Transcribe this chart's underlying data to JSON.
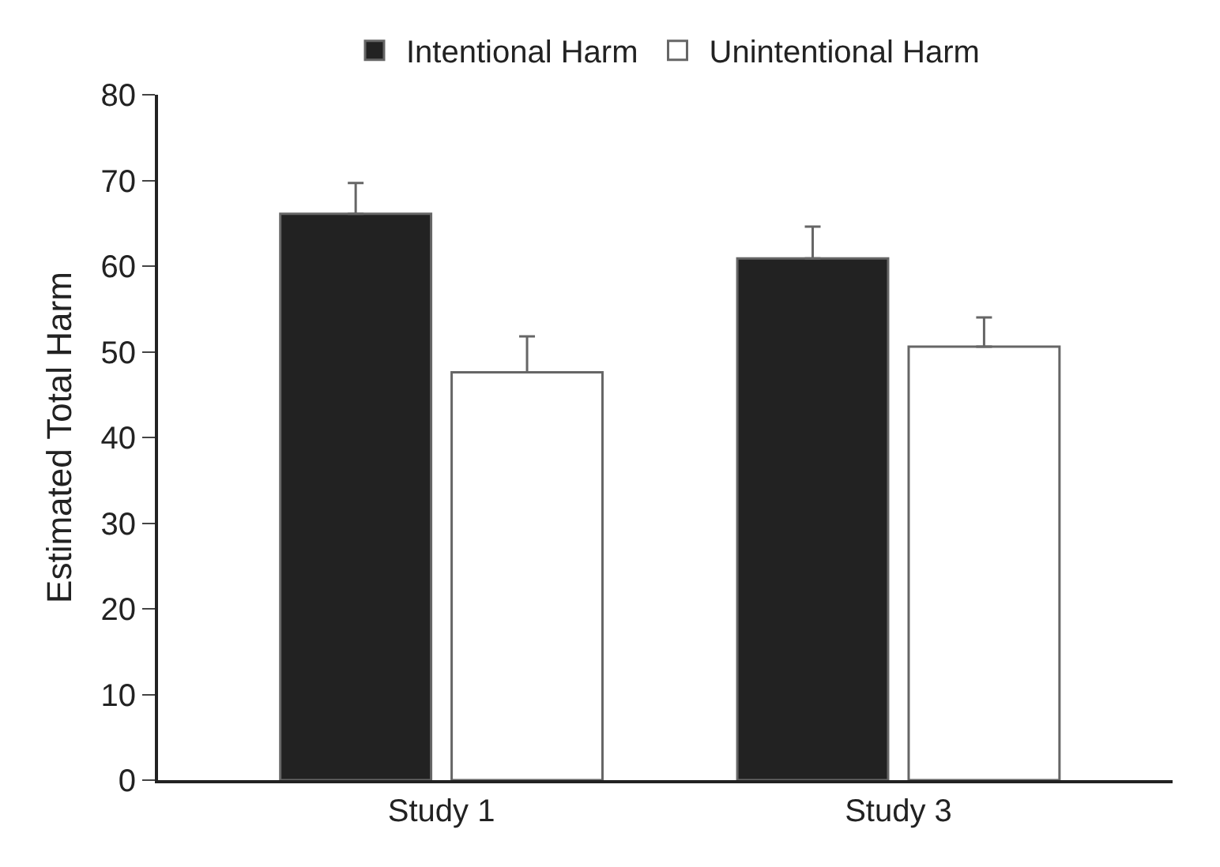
{
  "chart_data": {
    "type": "bar",
    "ylabel": "Estimated Total Harm",
    "categories": [
      "Study 1",
      "Study 3"
    ],
    "series": [
      {
        "name": "Intentional Harm",
        "color": "#222222",
        "values": [
          66.1,
          60.9
        ],
        "errors": [
          [
            66.1,
            69.7
          ],
          [
            60.9,
            64.6
          ]
        ]
      },
      {
        "name": "Unintentional Harm",
        "color": "#ffffff",
        "values": [
          47.6,
          50.6
        ],
        "errors": [
          [
            47.6,
            51.8
          ],
          [
            50.6,
            54.0
          ]
        ]
      }
    ],
    "ylim": [
      0,
      80
    ],
    "yticks": [
      0,
      10,
      20,
      30,
      40,
      50,
      60,
      70,
      80
    ],
    "grid": false,
    "legend": "top"
  }
}
